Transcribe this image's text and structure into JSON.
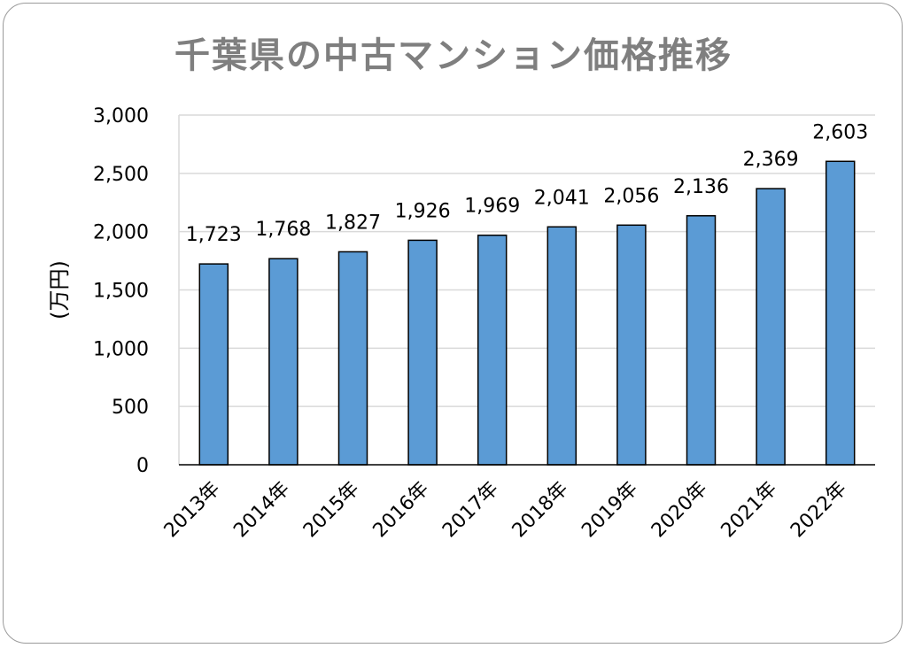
{
  "chart_data": {
    "type": "bar",
    "title": "千葉県の中古マンション価格推移",
    "ylabel": "(万円)",
    "xlabel": "",
    "categories": [
      "2013年",
      "2014年",
      "2015年",
      "2016年",
      "2017年",
      "2018年",
      "2019年",
      "2020年",
      "2021年",
      "2022年"
    ],
    "values": [
      1723,
      1768,
      1827,
      1926,
      1969,
      2041,
      2056,
      2136,
      2369,
      2603
    ],
    "value_labels": [
      "1,723",
      "1,768",
      "1,827",
      "1,926",
      "1,969",
      "2,041",
      "2,056",
      "2,136",
      "2,369",
      "2,603"
    ],
    "ylim": [
      0,
      3000
    ],
    "yticks": [
      0,
      500,
      1000,
      1500,
      2000,
      2500,
      3000
    ],
    "ytick_labels": [
      "0",
      "500",
      "1,000",
      "1,500",
      "2,000",
      "2,500",
      "3,000"
    ],
    "grid": true,
    "legend": "none",
    "bar_color": "#5b9bd5",
    "bar_edge_color": "#000000"
  }
}
